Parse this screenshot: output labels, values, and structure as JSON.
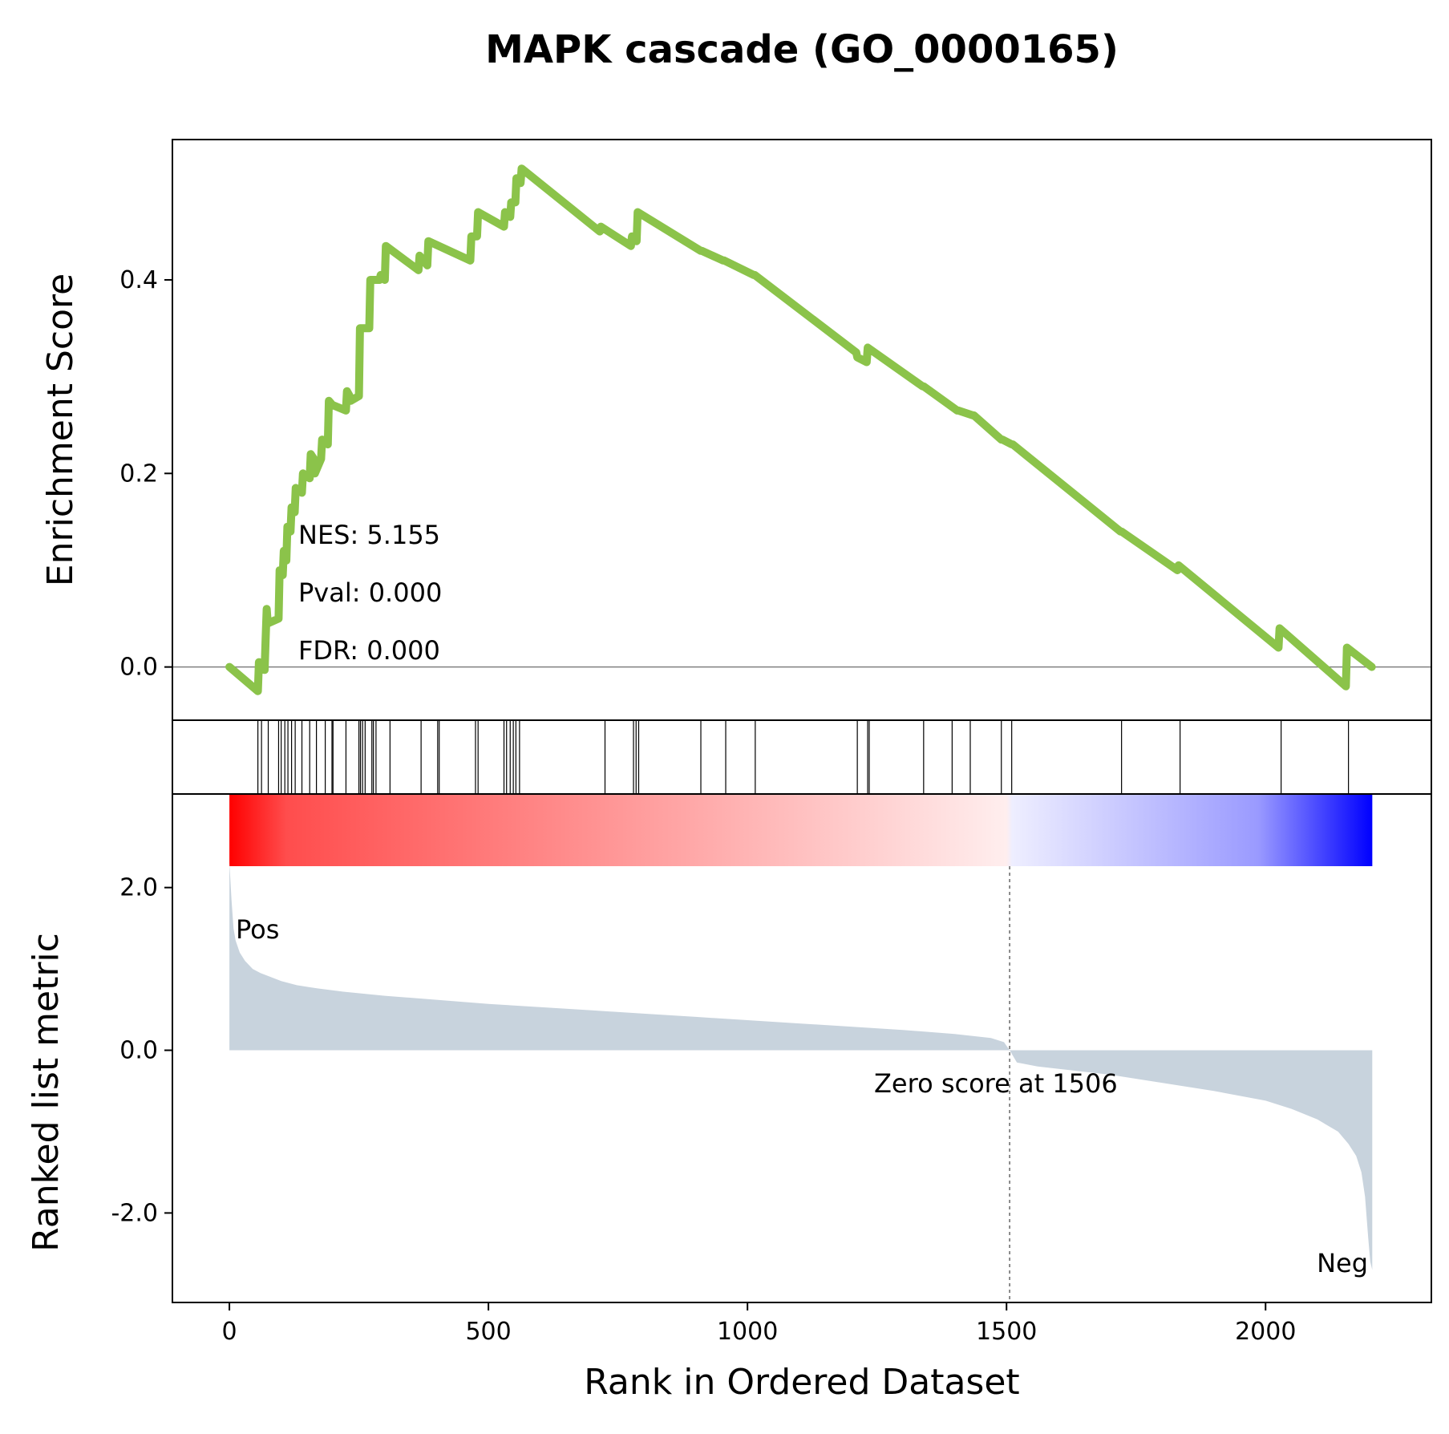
{
  "chart_data": {
    "type": "line",
    "title": "MAPK cascade (GO_0000165)",
    "xlabel": "Rank in Ordered Dataset",
    "xlim": [
      -110,
      2320
    ],
    "x_ticks": [
      0,
      500,
      1000,
      1500,
      2000
    ],
    "grid": false,
    "colors": {
      "running_es": "#8bc34a",
      "hits": "#000000",
      "metric_fill": "#c8d3dd",
      "pos": "#ff0000",
      "neg": "#0000ff"
    },
    "enrichment": {
      "ylabel": "Enrichment Score",
      "ylim": [
        -0.055,
        0.545
      ],
      "y_ticks": [
        0.0,
        0.2,
        0.4
      ],
      "y_tick_labels": [
        "0.0",
        "0.2",
        "0.4"
      ],
      "running_es": {
        "x": [
          0,
          55,
          57,
          68,
          70,
          72,
          74,
          95,
          97,
          103,
          105,
          110,
          112,
          118,
          120,
          126,
          128,
          140,
          142,
          155,
          157,
          163,
          165,
          177,
          179,
          190,
          192,
          200,
          202,
          225,
          227,
          232,
          234,
          250,
          252,
          262,
          264,
          270,
          272,
          290,
          292,
          300,
          302,
          365,
          367,
          382,
          384,
          465,
          467,
          478,
          480,
          530,
          532,
          542,
          544,
          552,
          554,
          562,
          564,
          715,
          717,
          775,
          777,
          786,
          788,
          910,
          912,
          953,
          955,
          1012,
          1014,
          1210,
          1212,
          1230,
          1232,
          1338,
          1340,
          1405,
          1407,
          1435,
          1437,
          1490,
          1492,
          1510,
          1512,
          1720,
          1722,
          1830,
          1832,
          2025,
          2027,
          2155,
          2157,
          2205
        ],
        "y": [
          0.0,
          -0.025,
          0.005,
          -0.003,
          0.03,
          0.06,
          0.045,
          0.05,
          0.1,
          0.095,
          0.12,
          0.11,
          0.145,
          0.14,
          0.165,
          0.16,
          0.185,
          0.18,
          0.2,
          0.195,
          0.22,
          0.215,
          0.2,
          0.215,
          0.235,
          0.23,
          0.275,
          0.27,
          0.27,
          0.265,
          0.285,
          0.28,
          0.275,
          0.28,
          0.35,
          0.35,
          0.35,
          0.35,
          0.4,
          0.4,
          0.405,
          0.4,
          0.435,
          0.41,
          0.425,
          0.415,
          0.44,
          0.42,
          0.445,
          0.445,
          0.47,
          0.455,
          0.47,
          0.465,
          0.48,
          0.48,
          0.505,
          0.5,
          0.515,
          0.45,
          0.455,
          0.435,
          0.445,
          0.44,
          0.47,
          0.43,
          0.43,
          0.42,
          0.42,
          0.405,
          0.405,
          0.325,
          0.32,
          0.315,
          0.33,
          0.29,
          0.29,
          0.265,
          0.265,
          0.26,
          0.26,
          0.235,
          0.235,
          0.23,
          0.23,
          0.14,
          0.14,
          0.1,
          0.105,
          0.02,
          0.04,
          -0.02,
          0.02,
          0.0
        ]
      },
      "stats": [
        {
          "label": "NES: 5.155"
        },
        {
          "label": "Pval: 0.000"
        },
        {
          "label": "FDR: 0.000"
        }
      ]
    },
    "hits": [
      55,
      62,
      75,
      95,
      100,
      107,
      113,
      120,
      127,
      140,
      155,
      168,
      185,
      198,
      200,
      225,
      250,
      253,
      257,
      262,
      275,
      278,
      283,
      310,
      370,
      402,
      405,
      475,
      480,
      530,
      535,
      542,
      548,
      553,
      560,
      725,
      780,
      785,
      790,
      910,
      958,
      1015,
      1212,
      1232,
      1235,
      1340,
      1395,
      1430,
      1490,
      1510,
      1722,
      1835,
      2030,
      2160
    ],
    "ranked_metric": {
      "ylabel": "Ranked list metric",
      "ylim": [
        -3.1,
        3.15
      ],
      "y_ticks": [
        2.0,
        0.0,
        -2.0
      ],
      "y_tick_labels": [
        "2.0",
        "0.0",
        "-2.0"
      ],
      "n_genes": 2206,
      "x": [
        0,
        4,
        8,
        12,
        20,
        30,
        45,
        60,
        80,
        100,
        130,
        170,
        220,
        300,
        400,
        500,
        600,
        700,
        800,
        900,
        1000,
        1100,
        1200,
        1300,
        1400,
        1470,
        1495,
        1506,
        1520,
        1560,
        1700,
        1800,
        1900,
        2000,
        2050,
        2100,
        2140,
        2160,
        2175,
        2185,
        2192,
        2198,
        2202,
        2206
      ],
      "values": [
        2.3,
        1.85,
        1.5,
        1.35,
        1.2,
        1.1,
        1.0,
        0.95,
        0.9,
        0.85,
        0.8,
        0.76,
        0.72,
        0.67,
        0.62,
        0.57,
        0.53,
        0.49,
        0.45,
        0.41,
        0.37,
        0.33,
        0.29,
        0.25,
        0.2,
        0.15,
        0.1,
        0.0,
        -0.15,
        -0.2,
        -0.3,
        -0.4,
        -0.5,
        -0.62,
        -0.72,
        -0.85,
        -1.0,
        -1.15,
        -1.3,
        -1.5,
        -1.8,
        -2.3,
        -2.6,
        -2.7
      ],
      "zero_cross": 1506,
      "zero_label": "Zero score at 1506",
      "pos_label": "Pos",
      "neg_label": "Neg"
    }
  }
}
